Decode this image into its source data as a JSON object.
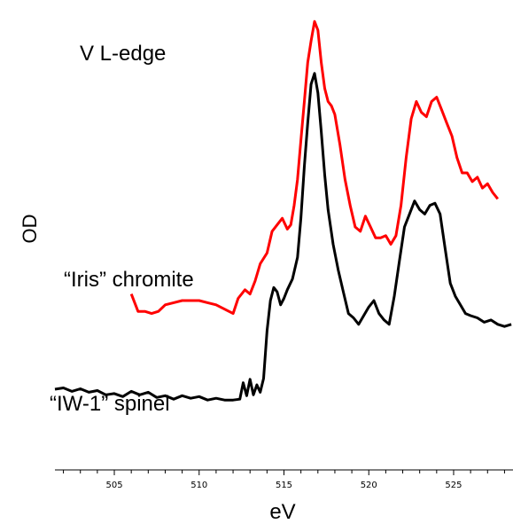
{
  "chart_data": {
    "type": "line",
    "title": "V L-edge",
    "xlabel": "eV",
    "ylabel": "OD",
    "xlim": [
      501.5,
      528.5
    ],
    "ylim": [
      0,
      1
    ],
    "x_ticks": [
      505,
      510,
      515,
      520,
      525
    ],
    "x_tick_labels": [
      "505",
      "510",
      "515",
      "520",
      "525"
    ],
    "x_minor_step": 1,
    "grid": false,
    "legend": "none",
    "series": [
      {
        "name": "“Iris” chromite",
        "color": "#ff0000",
        "points": [
          [
            506.0,
            0.345
          ],
          [
            506.4,
            0.305
          ],
          [
            506.8,
            0.305
          ],
          [
            507.2,
            0.3
          ],
          [
            507.6,
            0.305
          ],
          [
            508.0,
            0.32
          ],
          [
            508.5,
            0.325
          ],
          [
            509.0,
            0.33
          ],
          [
            509.5,
            0.33
          ],
          [
            510.0,
            0.33
          ],
          [
            510.5,
            0.325
          ],
          [
            511.0,
            0.32
          ],
          [
            511.5,
            0.31
          ],
          [
            512.0,
            0.3
          ],
          [
            512.3,
            0.335
          ],
          [
            512.7,
            0.355
          ],
          [
            513.0,
            0.345
          ],
          [
            513.3,
            0.375
          ],
          [
            513.6,
            0.415
          ],
          [
            514.0,
            0.44
          ],
          [
            514.3,
            0.49
          ],
          [
            514.6,
            0.505
          ],
          [
            514.9,
            0.52
          ],
          [
            515.2,
            0.495
          ],
          [
            515.4,
            0.505
          ],
          [
            515.6,
            0.55
          ],
          [
            515.8,
            0.61
          ],
          [
            516.0,
            0.7
          ],
          [
            516.2,
            0.79
          ],
          [
            516.4,
            0.88
          ],
          [
            516.6,
            0.93
          ],
          [
            516.8,
            0.975
          ],
          [
            517.0,
            0.955
          ],
          [
            517.2,
            0.88
          ],
          [
            517.4,
            0.82
          ],
          [
            517.6,
            0.79
          ],
          [
            517.8,
            0.78
          ],
          [
            518.0,
            0.76
          ],
          [
            518.3,
            0.69
          ],
          [
            518.6,
            0.61
          ],
          [
            518.9,
            0.55
          ],
          [
            519.2,
            0.5
          ],
          [
            519.5,
            0.49
          ],
          [
            519.8,
            0.525
          ],
          [
            520.1,
            0.5
          ],
          [
            520.4,
            0.475
          ],
          [
            520.7,
            0.475
          ],
          [
            521.0,
            0.48
          ],
          [
            521.3,
            0.46
          ],
          [
            521.6,
            0.48
          ],
          [
            521.9,
            0.55
          ],
          [
            522.2,
            0.66
          ],
          [
            522.5,
            0.75
          ],
          [
            522.8,
            0.79
          ],
          [
            523.1,
            0.765
          ],
          [
            523.4,
            0.755
          ],
          [
            523.7,
            0.79
          ],
          [
            524.0,
            0.8
          ],
          [
            524.3,
            0.77
          ],
          [
            524.6,
            0.74
          ],
          [
            524.9,
            0.71
          ],
          [
            525.2,
            0.66
          ],
          [
            525.5,
            0.625
          ],
          [
            525.8,
            0.625
          ],
          [
            526.1,
            0.605
          ],
          [
            526.4,
            0.615
          ],
          [
            526.7,
            0.59
          ],
          [
            527.0,
            0.6
          ],
          [
            527.3,
            0.58
          ],
          [
            527.6,
            0.565
          ]
        ]
      },
      {
        "name": "“IW-1” spinel",
        "color": "#000000",
        "points": [
          [
            501.5,
            0.125
          ],
          [
            502.0,
            0.128
          ],
          [
            502.5,
            0.12
          ],
          [
            503.0,
            0.126
          ],
          [
            503.5,
            0.118
          ],
          [
            504.0,
            0.122
          ],
          [
            504.5,
            0.112
          ],
          [
            505.0,
            0.115
          ],
          [
            505.5,
            0.108
          ],
          [
            506.0,
            0.12
          ],
          [
            506.5,
            0.112
          ],
          [
            507.0,
            0.118
          ],
          [
            507.5,
            0.106
          ],
          [
            508.0,
            0.11
          ],
          [
            508.5,
            0.102
          ],
          [
            509.0,
            0.11
          ],
          [
            509.5,
            0.104
          ],
          [
            510.0,
            0.108
          ],
          [
            510.5,
            0.1
          ],
          [
            511.0,
            0.104
          ],
          [
            511.5,
            0.1
          ],
          [
            512.0,
            0.1
          ],
          [
            512.4,
            0.102
          ],
          [
            512.6,
            0.14
          ],
          [
            512.8,
            0.11
          ],
          [
            513.0,
            0.148
          ],
          [
            513.2,
            0.112
          ],
          [
            513.4,
            0.135
          ],
          [
            513.6,
            0.118
          ],
          [
            513.8,
            0.15
          ],
          [
            514.0,
            0.26
          ],
          [
            514.2,
            0.33
          ],
          [
            514.4,
            0.36
          ],
          [
            514.6,
            0.35
          ],
          [
            514.8,
            0.32
          ],
          [
            515.0,
            0.335
          ],
          [
            515.2,
            0.355
          ],
          [
            515.5,
            0.38
          ],
          [
            515.8,
            0.43
          ],
          [
            516.0,
            0.52
          ],
          [
            516.2,
            0.64
          ],
          [
            516.4,
            0.74
          ],
          [
            516.6,
            0.83
          ],
          [
            516.8,
            0.855
          ],
          [
            517.0,
            0.81
          ],
          [
            517.2,
            0.72
          ],
          [
            517.4,
            0.62
          ],
          [
            517.6,
            0.54
          ],
          [
            517.9,
            0.46
          ],
          [
            518.2,
            0.4
          ],
          [
            518.5,
            0.35
          ],
          [
            518.8,
            0.3
          ],
          [
            519.1,
            0.29
          ],
          [
            519.4,
            0.275
          ],
          [
            519.7,
            0.295
          ],
          [
            520.0,
            0.315
          ],
          [
            520.3,
            0.33
          ],
          [
            520.6,
            0.3
          ],
          [
            520.9,
            0.285
          ],
          [
            521.2,
            0.275
          ],
          [
            521.5,
            0.34
          ],
          [
            521.8,
            0.42
          ],
          [
            522.1,
            0.5
          ],
          [
            522.4,
            0.53
          ],
          [
            522.7,
            0.56
          ],
          [
            523.0,
            0.54
          ],
          [
            523.3,
            0.53
          ],
          [
            523.6,
            0.55
          ],
          [
            523.9,
            0.555
          ],
          [
            524.2,
            0.53
          ],
          [
            524.5,
            0.45
          ],
          [
            524.8,
            0.37
          ],
          [
            525.1,
            0.34
          ],
          [
            525.4,
            0.32
          ],
          [
            525.7,
            0.3
          ],
          [
            526.0,
            0.295
          ],
          [
            526.4,
            0.29
          ],
          [
            526.8,
            0.28
          ],
          [
            527.2,
            0.285
          ],
          [
            527.6,
            0.275
          ],
          [
            528.0,
            0.27
          ],
          [
            528.4,
            0.275
          ]
        ]
      }
    ]
  }
}
